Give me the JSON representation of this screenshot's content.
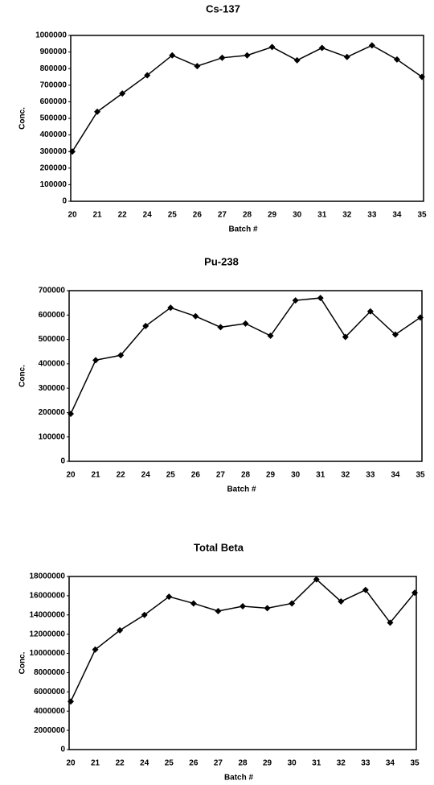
{
  "chart_data": [
    {
      "type": "line",
      "title": "Cs-137",
      "x_label": "Batch #",
      "y_label": "Conc.",
      "categories": [
        "20",
        "21",
        "22",
        "24",
        "25",
        "26",
        "27",
        "28",
        "29",
        "30",
        "31",
        "32",
        "33",
        "34",
        "35"
      ],
      "series": [
        {
          "name": "Cs-137",
          "color": "#000000",
          "values": [
            300000,
            540000,
            650000,
            760000,
            880000,
            815000,
            865000,
            880000,
            930000,
            850000,
            925000,
            870000,
            940000,
            855000,
            750000
          ]
        }
      ],
      "ylim": [
        0,
        1000000
      ],
      "yticks": [
        0,
        100000,
        200000,
        300000,
        400000,
        500000,
        600000,
        700000,
        800000,
        900000,
        1000000
      ],
      "grid": false
    },
    {
      "type": "line",
      "title": "Pu-238",
      "x_label": "Batch #",
      "y_label": "Conc.",
      "categories": [
        "20",
        "21",
        "22",
        "24",
        "25",
        "26",
        "27",
        "28",
        "29",
        "30",
        "31",
        "32",
        "33",
        "34",
        "35"
      ],
      "series": [
        {
          "name": "Pu-238",
          "color": "#000000",
          "values": [
            195000,
            415000,
            435000,
            555000,
            630000,
            595000,
            550000,
            565000,
            515000,
            660000,
            670000,
            510000,
            615000,
            520000,
            590000
          ]
        }
      ],
      "ylim": [
        0,
        700000
      ],
      "yticks": [
        0,
        100000,
        200000,
        300000,
        400000,
        500000,
        600000,
        700000
      ],
      "grid": false
    },
    {
      "type": "line",
      "title": "Total Beta",
      "x_label": "Batch #",
      "y_label": "Conc.",
      "categories": [
        "20",
        "21",
        "22",
        "24",
        "25",
        "26",
        "27",
        "28",
        "29",
        "30",
        "31",
        "32",
        "33",
        "34",
        "35"
      ],
      "series": [
        {
          "name": "Total Beta",
          "color": "#000000",
          "values": [
            5000000,
            10400000,
            12400000,
            14000000,
            15900000,
            15200000,
            14400000,
            14900000,
            14700000,
            15200000,
            17700000,
            15400000,
            16600000,
            13200000,
            16300000
          ]
        }
      ],
      "ylim": [
        0,
        18000000
      ],
      "yticks": [
        0,
        2000000,
        4000000,
        6000000,
        8000000,
        10000000,
        12000000,
        14000000,
        16000000,
        18000000
      ],
      "grid": false
    }
  ]
}
